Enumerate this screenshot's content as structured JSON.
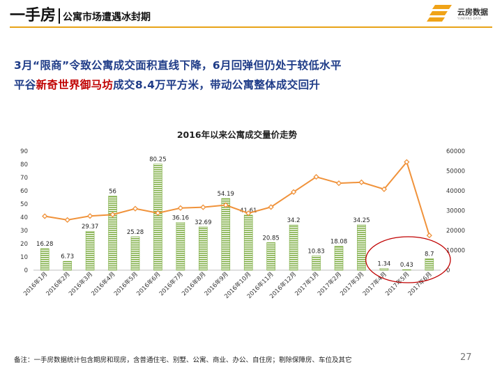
{
  "header": {
    "title_main": "一手房",
    "title_sub": "公寓市场遭遇冰封期",
    "logo_name": "云房数据",
    "logo_en": "YUNFANG DATA"
  },
  "headline": {
    "line1": "3月“限商”令致公寓成交面积直线下降，6月回弹但仍处于较低水平",
    "line2_pre": "平谷",
    "line2_highlight": "新奇世界御马坊",
    "line2_post": "成交8.4万平方米，带动公寓整体成交回升"
  },
  "chart_data": {
    "type": "bar",
    "title": "2016年以来公寓成交量价走势",
    "categories": [
      "2016年1月",
      "2016年2月",
      "2016年3月",
      "2016年4月",
      "2016年5月",
      "2016年6月",
      "2016年7月",
      "2016年8月",
      "2016年9月",
      "2016年10月",
      "2016年11月",
      "2016年12月",
      "2017年1月",
      "2017年2月",
      "2017年3月",
      "2017年4月",
      "2017年5月",
      "2017年6月"
    ],
    "series": [
      {
        "type": "bar",
        "axis": "left",
        "values": [
          16.28,
          6.73,
          29.37,
          56,
          25.28,
          80.25,
          36.16,
          32.69,
          54.19,
          41.61,
          20.85,
          34.2,
          10.83,
          18.08,
          34.25,
          1.34,
          0.43,
          8.7
        ],
        "color": "#8ab650"
      },
      {
        "type": "line",
        "axis": "right",
        "values": [
          27200,
          25300,
          27300,
          28000,
          31000,
          28800,
          31300,
          31700,
          32800,
          28700,
          31800,
          39400,
          47000,
          43800,
          44300,
          40800,
          54500,
          17500
        ],
        "color": "#f0923a"
      }
    ],
    "data_labels": [
      "16.28",
      "6.73",
      "29.37",
      "56",
      "25.28",
      "80.25",
      "36.16",
      "32.69",
      "54.19",
      "41.61",
      "20.85",
      "34.2",
      "10.83",
      "18.08",
      "34.25",
      "1.34",
      "0.43",
      "8.7"
    ],
    "ylim_left": [
      0,
      90
    ],
    "ylim_right": [
      0,
      60000
    ],
    "yticks_left": [
      "0",
      "10",
      "20",
      "30",
      "40",
      "50",
      "60",
      "70",
      "80",
      "90"
    ],
    "yticks_right": [
      "0",
      "10000",
      "20000",
      "30000",
      "40000",
      "50000",
      "60000"
    ],
    "annotation": "red ellipse around 2017年4月–2017年6月",
    "annotation_color": "#c00000"
  },
  "footnote": "备注：一手房数据统计包含期房和现房，含普通住宅、别墅、公寓、商业、办公、自住房；剔除保障房、车位及其它",
  "page_number": "27"
}
